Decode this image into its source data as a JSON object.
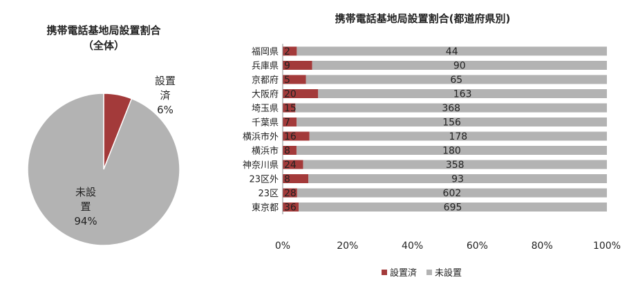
{
  "pie": {
    "title_line1": "携帯電話基地局設置割合",
    "title_line2": "（全体）",
    "label_installed_1": "設置",
    "label_installed_2": "済",
    "label_installed_pct": "6%",
    "label_uninstalled_1": "未設",
    "label_uninstalled_2": "置",
    "label_uninstalled_pct": "94%"
  },
  "bar": {
    "title": "携帯電話基地局設置割合(都道府県別)"
  },
  "legend": {
    "installed": "設置済",
    "uninstalled": "未設置"
  },
  "colors": {
    "installed": "#a33a3a",
    "uninstalled": "#b3b3b3"
  },
  "chart_data": [
    {
      "type": "pie",
      "title": "携帯電話基地局設置割合（全体）",
      "labels": [
        "設置済",
        "未設置"
      ],
      "values": [
        6,
        94
      ],
      "unit": "%"
    },
    {
      "type": "bar",
      "orientation": "horizontal",
      "stacked": "percent",
      "title": "携帯電話基地局設置割合(都道府県別)",
      "categories": [
        "福岡県",
        "兵庫県",
        "京都府",
        "大阪府",
        "埼玉県",
        "千葉県",
        "横浜市外",
        "横浜市",
        "神奈川県",
        "23区外",
        "23区",
        "東京都"
      ],
      "series": [
        {
          "name": "設置済",
          "values": [
            2,
            9,
            5,
            20,
            15,
            7,
            16,
            8,
            24,
            8,
            28,
            36
          ]
        },
        {
          "name": "未設置",
          "values": [
            44,
            90,
            65,
            163,
            368,
            156,
            178,
            180,
            358,
            93,
            602,
            695
          ]
        }
      ],
      "xticks": [
        "0%",
        "20%",
        "40%",
        "60%",
        "80%",
        "100%"
      ],
      "xlim": [
        0,
        100
      ],
      "grid": false,
      "legend_position": "bottom"
    }
  ]
}
